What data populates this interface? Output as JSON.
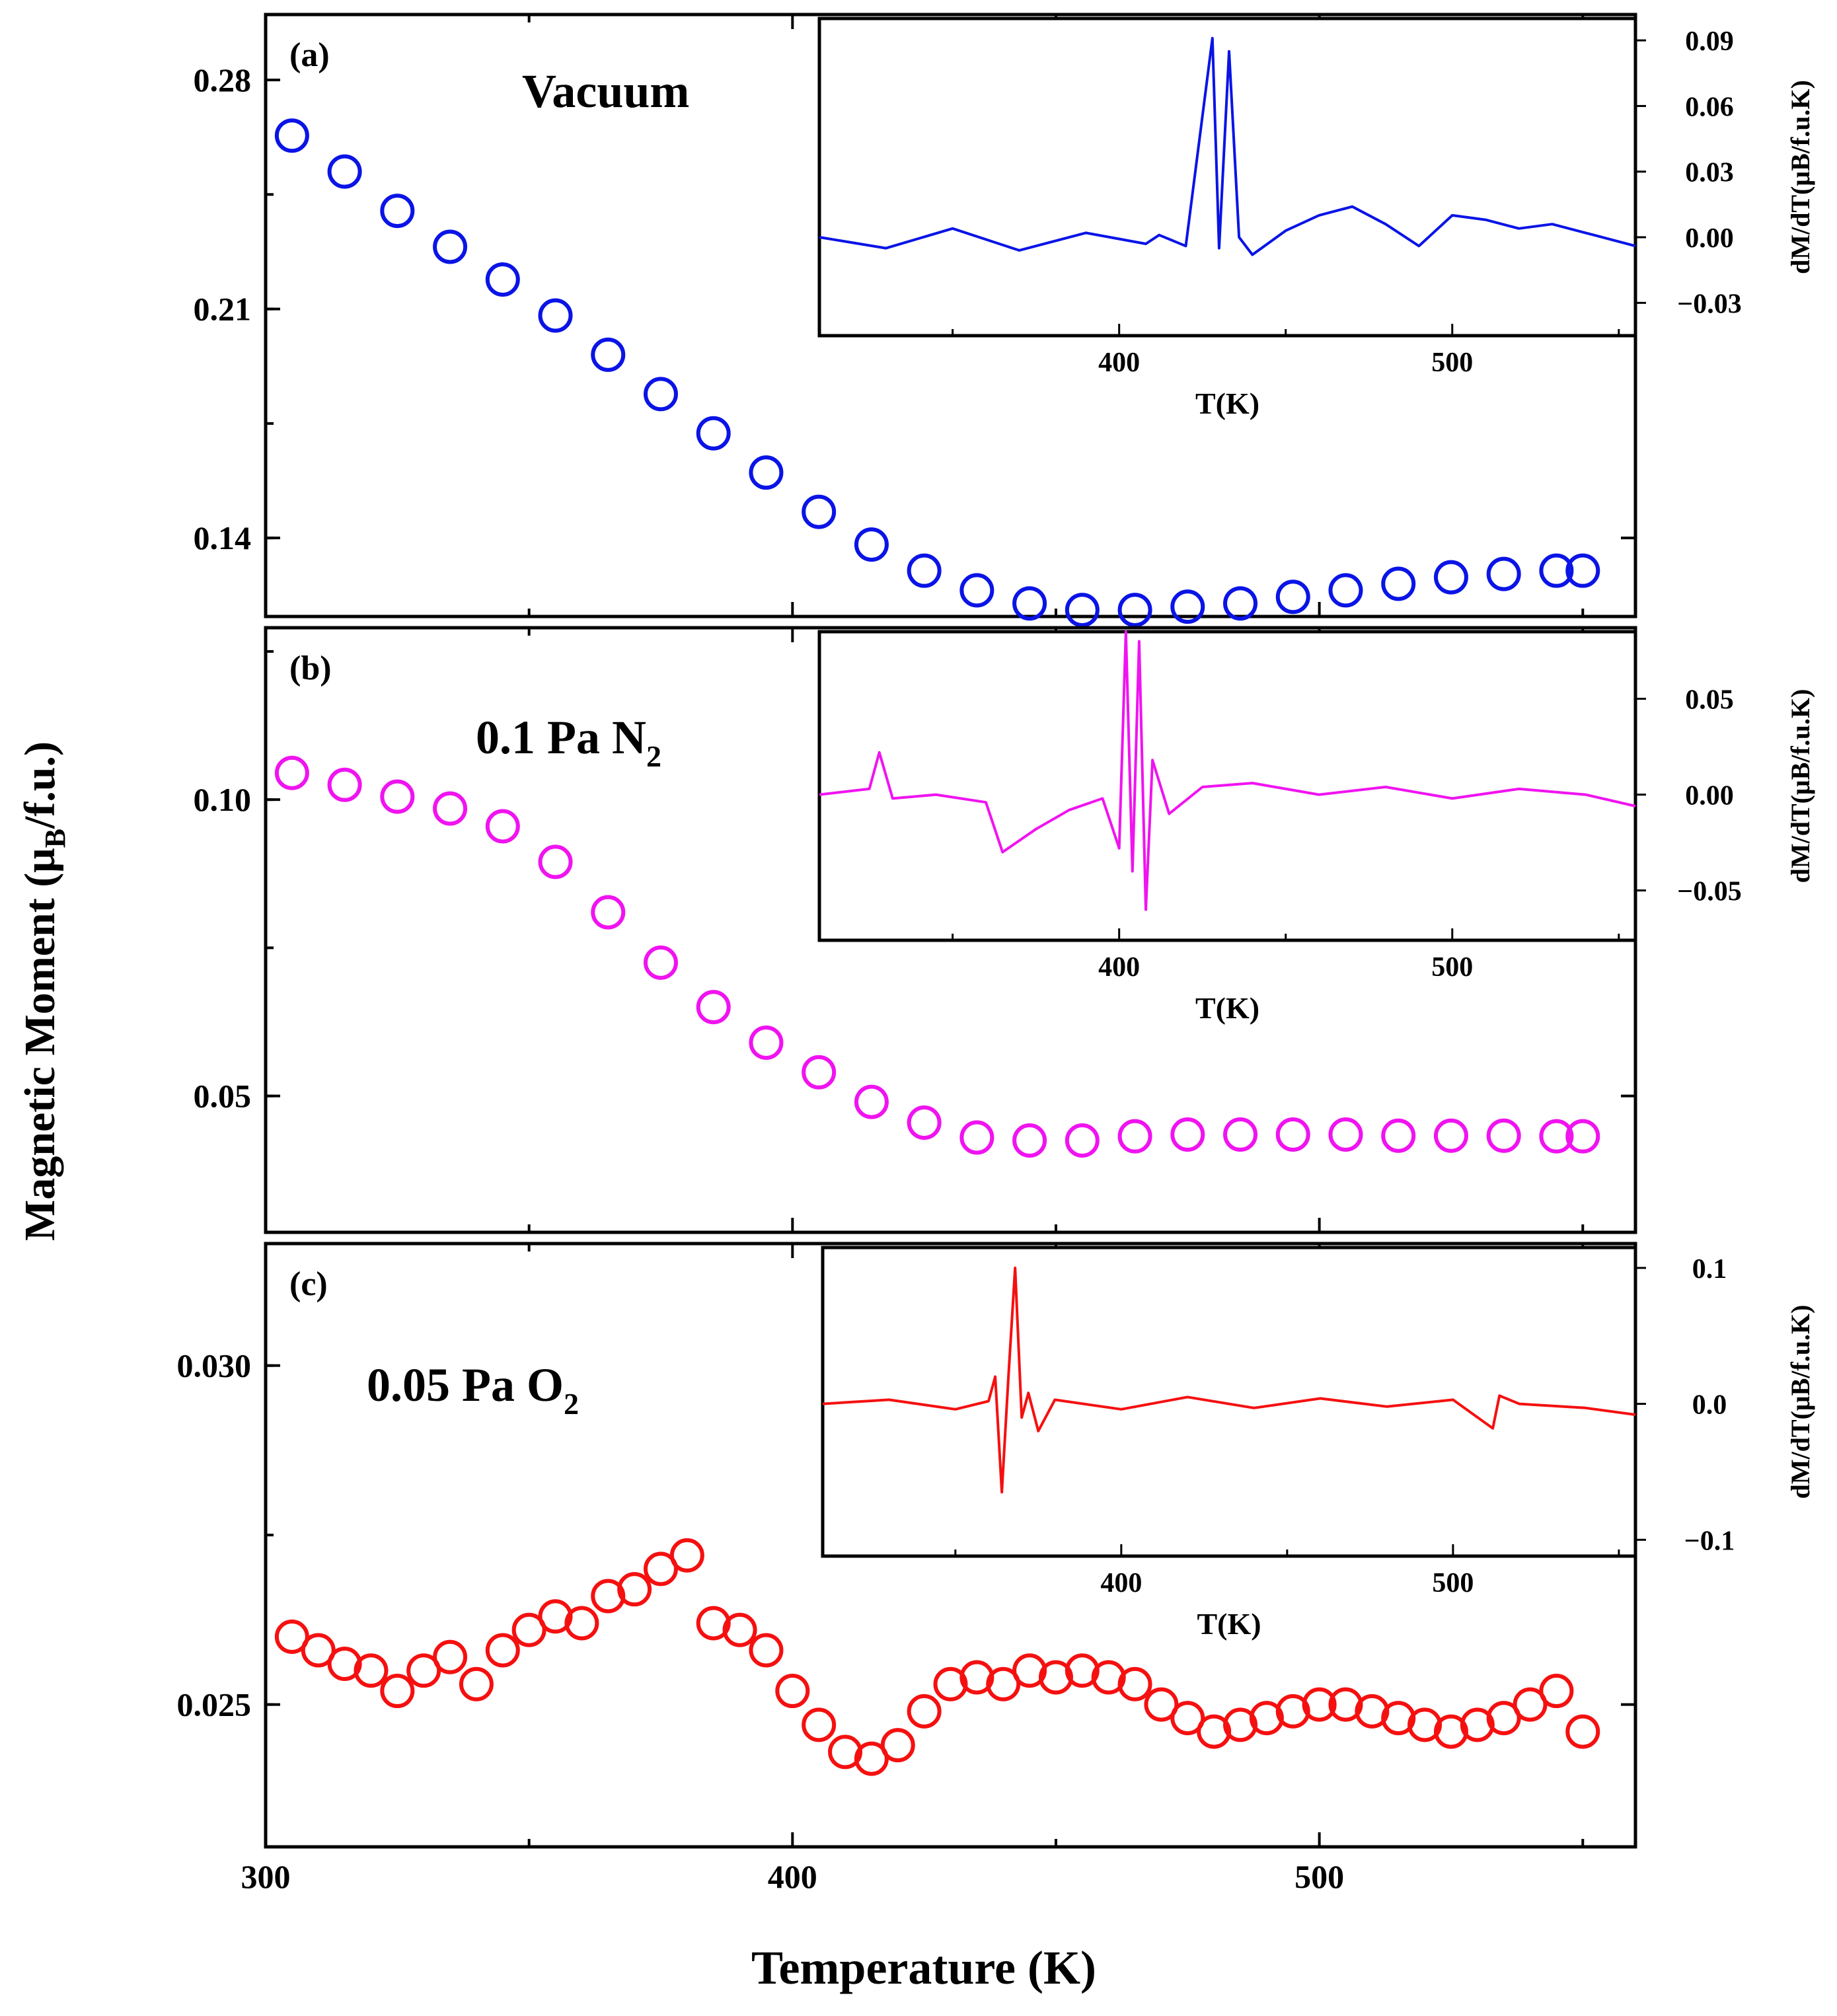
{
  "figure": {
    "y_label": "Magnetic Moment (μB/f.u.)",
    "x_label": "Temperature (K)",
    "inset_x_label": "T(K)",
    "inset_y_label": "dM/dT(μB/f.u.K)"
  },
  "chart_data": [
    {
      "type": "scatter",
      "panel": "(a)",
      "condition": "Vacuum",
      "color": "#0a14e6",
      "xlim": [
        300,
        560
      ],
      "ylim": [
        0.116,
        0.3
      ],
      "x_ticks": [
        "300",
        "400",
        "500"
      ],
      "y_ticks": [
        "0.14",
        "0.21",
        "0.28"
      ],
      "y_tick_values": [
        0.14,
        0.21,
        0.28
      ],
      "x": [
        305,
        315,
        325,
        335,
        345,
        355,
        365,
        375,
        385,
        395,
        405,
        415,
        425,
        435,
        445,
        455,
        465,
        475,
        485,
        495,
        505,
        515,
        525,
        535,
        545,
        550
      ],
      "y": [
        0.263,
        0.252,
        0.24,
        0.229,
        0.219,
        0.208,
        0.196,
        0.184,
        0.172,
        0.16,
        0.148,
        0.138,
        0.13,
        0.124,
        0.12,
        0.118,
        0.118,
        0.119,
        0.12,
        0.122,
        0.124,
        0.126,
        0.128,
        0.129,
        0.13,
        0.13
      ],
      "inset": {
        "type": "line",
        "xlim": [
          310,
          555
        ],
        "ylim": [
          -0.045,
          0.1
        ],
        "x_ticks": [
          "400",
          "500"
        ],
        "y_ticks": [
          "−0.03",
          "0.00",
          "0.03",
          "0.06",
          "0.09"
        ],
        "y_tick_values": [
          -0.03,
          0.0,
          0.03,
          0.06,
          0.09
        ],
        "x": [
          310,
          330,
          350,
          370,
          390,
          408,
          412,
          420,
          428,
          430,
          433,
          436,
          440,
          450,
          460,
          470,
          480,
          490,
          500,
          510,
          520,
          530,
          540,
          555
        ],
        "y": [
          0.0,
          -0.005,
          0.004,
          -0.006,
          0.002,
          -0.003,
          0.001,
          -0.004,
          0.091,
          -0.005,
          0.085,
          0.0,
          -0.008,
          0.003,
          0.01,
          0.014,
          0.006,
          -0.004,
          0.01,
          0.008,
          0.004,
          0.006,
          0.002,
          -0.004
        ]
      }
    },
    {
      "type": "scatter",
      "panel": "(b)",
      "condition": "0.1 Pa N",
      "condition_sub": "2",
      "color": "#f013f0",
      "xlim": [
        300,
        560
      ],
      "ylim": [
        0.027,
        0.129
      ],
      "x_ticks": [
        "300",
        "400",
        "500"
      ],
      "y_ticks": [
        "0.05",
        "0.10"
      ],
      "y_tick_values": [
        0.05,
        0.1
      ],
      "x": [
        305,
        315,
        325,
        335,
        345,
        355,
        365,
        375,
        385,
        395,
        405,
        415,
        425,
        435,
        445,
        455,
        465,
        475,
        485,
        495,
        505,
        515,
        525,
        535,
        545,
        550
      ],
      "y": [
        0.1045,
        0.1025,
        0.1005,
        0.0985,
        0.0955,
        0.0895,
        0.081,
        0.0725,
        0.065,
        0.059,
        0.054,
        0.049,
        0.0455,
        0.043,
        0.0425,
        0.0425,
        0.0432,
        0.0435,
        0.0435,
        0.0435,
        0.0435,
        0.0433,
        0.0433,
        0.0433,
        0.0432,
        0.0432
      ],
      "inset": {
        "type": "line",
        "xlim": [
          310,
          555
        ],
        "ylim": [
          -0.076,
          0.085
        ],
        "x_ticks": [
          "400",
          "500"
        ],
        "y_ticks": [
          "−0.05",
          "0.00",
          "0.05"
        ],
        "y_tick_values": [
          -0.05,
          0.0,
          0.05
        ],
        "x": [
          310,
          325,
          328,
          332,
          345,
          360,
          365,
          375,
          385,
          395,
          400,
          402,
          404,
          406,
          408,
          410,
          415,
          425,
          440,
          460,
          480,
          500,
          520,
          540,
          555
        ],
        "y": [
          0.0,
          0.003,
          0.022,
          -0.002,
          0.0,
          -0.004,
          -0.03,
          -0.018,
          -0.008,
          -0.002,
          -0.028,
          0.085,
          -0.04,
          0.08,
          -0.06,
          0.018,
          -0.01,
          0.004,
          0.006,
          0.0,
          0.004,
          -0.002,
          0.003,
          0.0,
          -0.006
        ]
      }
    },
    {
      "type": "scatter",
      "panel": "(c)",
      "condition": "0.05 Pa O",
      "condition_sub": "2",
      "color": "#f51010",
      "xlim": [
        300,
        560
      ],
      "ylim": [
        0.0229,
        0.0318
      ],
      "x_ticks": [
        "300",
        "400",
        "500"
      ],
      "y_ticks": [
        "0.025",
        "0.030"
      ],
      "y_tick_values": [
        0.025,
        0.03
      ],
      "x": [
        305,
        310,
        315,
        320,
        325,
        330,
        335,
        340,
        345,
        350,
        355,
        360,
        365,
        370,
        375,
        380,
        385,
        390,
        395,
        400,
        405,
        410,
        415,
        420,
        425,
        430,
        435,
        440,
        445,
        450,
        455,
        460,
        465,
        470,
        475,
        480,
        485,
        490,
        495,
        500,
        505,
        510,
        515,
        520,
        525,
        530,
        535,
        540,
        545,
        550
      ],
      "y": [
        0.026,
        0.0258,
        0.0256,
        0.0255,
        0.0252,
        0.0255,
        0.0257,
        0.0253,
        0.0258,
        0.0261,
        0.0263,
        0.0262,
        0.0266,
        0.0267,
        0.027,
        0.0272,
        0.0262,
        0.0261,
        0.0258,
        0.0252,
        0.0247,
        0.0243,
        0.0242,
        0.0244,
        0.0249,
        0.0253,
        0.0254,
        0.0253,
        0.0255,
        0.0254,
        0.0255,
        0.0254,
        0.0253,
        0.025,
        0.0248,
        0.0246,
        0.0247,
        0.0248,
        0.0249,
        0.025,
        0.025,
        0.0249,
        0.0248,
        0.0247,
        0.0246,
        0.0247,
        0.0248,
        0.025,
        0.0252,
        0.0246
      ]
    },
    {
      "panel": "(c) inset",
      "type": "line",
      "color": "#f51010",
      "xlim": [
        310,
        555
      ],
      "ylim": [
        -0.112,
        0.115
      ],
      "x_ticks": [
        "400",
        "500"
      ],
      "y_ticks": [
        "−0.1",
        "0.0",
        "0.1"
      ],
      "y_tick_values": [
        -0.1,
        0.0,
        0.1
      ],
      "x": [
        310,
        330,
        350,
        360,
        362,
        364,
        366,
        368,
        370,
        372,
        375,
        380,
        400,
        420,
        440,
        460,
        480,
        500,
        512,
        514,
        520,
        540,
        555
      ],
      "y": [
        0.0,
        0.003,
        -0.004,
        0.002,
        0.02,
        -0.065,
        0.02,
        0.1,
        -0.01,
        0.008,
        -0.02,
        0.003,
        -0.004,
        0.005,
        -0.003,
        0.004,
        -0.002,
        0.003,
        -0.018,
        0.006,
        0.0,
        -0.003,
        -0.008
      ]
    }
  ]
}
